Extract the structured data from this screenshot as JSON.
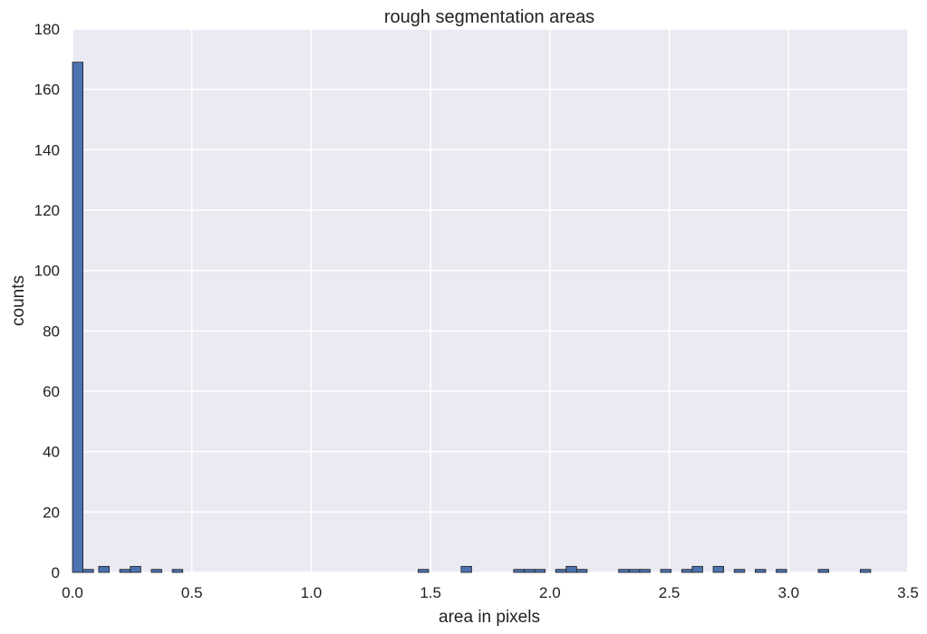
{
  "chart_data": {
    "type": "bar",
    "subtype": "histogram",
    "title": "rough segmentation areas",
    "xlabel": "area in pixels",
    "ylabel": "counts",
    "xlim": [
      0.0,
      3.5
    ],
    "ylim": [
      0,
      180
    ],
    "xticks": [
      "0.0",
      "0.5",
      "1.0",
      "1.5",
      "2.0",
      "2.5",
      "3.0",
      "3.5"
    ],
    "yticks": [
      "0",
      "20",
      "40",
      "60",
      "80",
      "100",
      "120",
      "140",
      "160",
      "180"
    ],
    "bin_width": 0.044,
    "grid": true,
    "colors": {
      "bar": "#4c72b0",
      "bar_edge": "#1e1e1e",
      "plot_bg": "#eaeaf2",
      "grid": "#ffffff"
    },
    "bins": [
      {
        "x": 0.022,
        "count": 169
      },
      {
        "x": 0.066,
        "count": 1
      },
      {
        "x": 0.132,
        "count": 2
      },
      {
        "x": 0.22,
        "count": 1
      },
      {
        "x": 0.264,
        "count": 2
      },
      {
        "x": 0.352,
        "count": 1
      },
      {
        "x": 0.44,
        "count": 1
      },
      {
        "x": 1.47,
        "count": 1
      },
      {
        "x": 1.65,
        "count": 2
      },
      {
        "x": 1.87,
        "count": 1
      },
      {
        "x": 1.914,
        "count": 1
      },
      {
        "x": 1.958,
        "count": 1
      },
      {
        "x": 2.046,
        "count": 1
      },
      {
        "x": 2.09,
        "count": 2
      },
      {
        "x": 2.134,
        "count": 1
      },
      {
        "x": 2.31,
        "count": 1
      },
      {
        "x": 2.354,
        "count": 1
      },
      {
        "x": 2.398,
        "count": 1
      },
      {
        "x": 2.486,
        "count": 1
      },
      {
        "x": 2.574,
        "count": 1
      },
      {
        "x": 2.618,
        "count": 2
      },
      {
        "x": 2.706,
        "count": 2
      },
      {
        "x": 2.794,
        "count": 1
      },
      {
        "x": 2.882,
        "count": 1
      },
      {
        "x": 2.97,
        "count": 1
      },
      {
        "x": 3.146,
        "count": 1
      },
      {
        "x": 3.322,
        "count": 1
      }
    ]
  }
}
